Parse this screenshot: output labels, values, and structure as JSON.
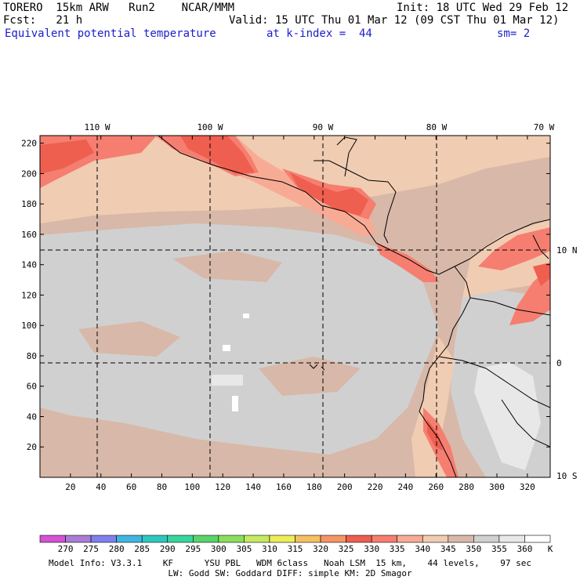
{
  "header": {
    "model": "TORERO  15km ARW   Run2    NCAR/MMM",
    "init": "Init: 18 UTC Wed 29 Feb 12",
    "fcst": "Fcst:   21 h",
    "valid": "Valid: 15 UTC Thu 01 Mar 12 (09 CST Thu 01 Mar 12)",
    "field": "Equivalent potential temperature",
    "level": "at k-index =  44",
    "smooth": "sm= 2"
  },
  "map": {
    "lon_labels": [
      "110 W",
      "100 W",
      "90 W",
      "80 W",
      "70 W"
    ],
    "lat_labels": [
      "10 N",
      "0",
      "10 S"
    ],
    "y_ticks": [
      "20",
      "40",
      "60",
      "80",
      "100",
      "120",
      "140",
      "160",
      "180",
      "200",
      "220"
    ],
    "x_ticks": [
      "20",
      "40",
      "60",
      "80",
      "100",
      "120",
      "140",
      "160",
      "180",
      "200",
      "220",
      "240",
      "260",
      "280",
      "300",
      "320"
    ],
    "grid_x_max": 335,
    "grid_y_max": 225
  },
  "colorbar": {
    "unit": "K",
    "labels": [
      "270",
      "275",
      "280",
      "285",
      "290",
      "295",
      "300",
      "305",
      "310",
      "315",
      "320",
      "325",
      "330",
      "335",
      "340",
      "345",
      "350",
      "355",
      "360"
    ],
    "colors": [
      "#d452d4",
      "#a97cd6",
      "#7f7fed",
      "#3fb6e0",
      "#2ec7c0",
      "#36d69e",
      "#59d46b",
      "#8bde5d",
      "#c4ea62",
      "#eded5a",
      "#f5c062",
      "#f59566",
      "#ee5f4f",
      "#f57e70",
      "#f7ab95",
      "#f0ccb2",
      "#d8b8a8",
      "#d0d0d0",
      "#e8e8e8",
      "#ffffff"
    ]
  },
  "footer": {
    "line1": "Model Info: V3.3.1    KF      YSU PBL   WDM 6class   Noah LSM  15 km,    44 levels,    97 sec",
    "line2": "LW: Godd SW: Goddard DIFF: simple KM: 2D Smagor"
  }
}
